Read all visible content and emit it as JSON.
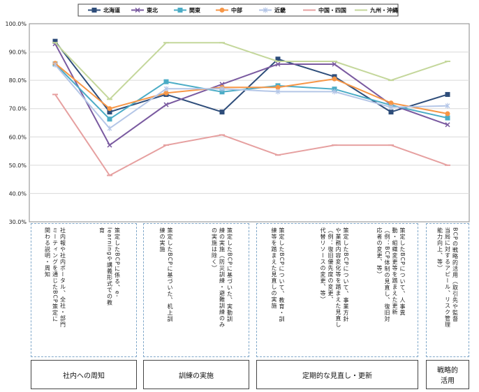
{
  "chart_data": {
    "type": "line",
    "ylim": [
      0.3,
      1.0
    ],
    "y_ticks": [
      "100.0%",
      "90.0%",
      "80.0%",
      "70.0%",
      "60.0%",
      "50.0%",
      "40.0%",
      "30.0%"
    ],
    "categories": [
      "社内報や社内ポータル、全社・部門ミーティングを通じたBCP策定に関わる説明・周知",
      "策定したBCPに係る、e-learningや講義形式での教育",
      "策定したBCPに基づいた、机上訓練の実施",
      "策定したBCPに基づいた、実動訓練の実施（防災訓練・避難訓練のみの実施は除く）",
      "策定したBCPについて、教育・訓練等を踏まえた見直しの実施",
      "策定したBCPについて、事業方針や業務内容変化等を踏まえた見直し（例：復旧優先度の変更、代替リソースの変更、等）",
      "策定したBCPについて、人事異動・組織変更等を踏まえた更新（例：BCP体制の見直し、復旧対応者の変更、等）",
      "BCPの戦略的活用（取引先や監督当局に対するアピール、リスク管理能力向上、等）"
    ],
    "category_lines": [
      [
        "社内報や社内ポータル、全社・部門",
        "ミーティングを通じたBCP策定に",
        "関わる説明・周知"
      ],
      [
        "策定したBCPに係る、e-",
        "learningや講義形式での教",
        "育"
      ],
      [
        "策定したBCPに基づいた、机上訓",
        "練の実施"
      ],
      [
        "策定したBCPに基づいた、実動訓",
        "練の実施（防災訓練・避難訓練のみ",
        "の実施は除く）"
      ],
      [
        "策定したBCPについて、教育・訓",
        "練等を踏まえた見直しの実施"
      ],
      [
        "策定したBCPについて、事業方針",
        "や業務内容変化等を踏まえた見直し",
        "（例：復旧優先度の変更、",
        "代替リソースの変更、等）"
      ],
      [
        "策定したBCPについて、人事異",
        "動・組織変更等を踏まえた更新",
        "（例：BCP体制の見直し、復旧対",
        "応者の変更、等）"
      ],
      [
        "BCPの戦略的活用（取引先や監督",
        "当局に対するアピール、リスク管理",
        "能力向上、等）"
      ]
    ],
    "groups": [
      {
        "label_lines": [
          "社内への周知"
        ],
        "span": [
          0,
          1
        ]
      },
      {
        "label_lines": [
          "訓練の実施"
        ],
        "span": [
          2,
          3
        ]
      },
      {
        "label_lines": [
          "定期的な見直し・更新"
        ],
        "span": [
          4,
          6
        ]
      },
      {
        "label_lines": [
          "戦略的",
          "活用"
        ],
        "span": [
          7,
          7
        ]
      }
    ],
    "series": [
      {
        "name": "北海道",
        "color": "#2e4d7a",
        "marker": "square",
        "values": [
          0.938,
          0.688,
          0.75,
          0.688,
          0.875,
          0.813,
          0.688,
          0.75
        ]
      },
      {
        "name": "東北",
        "color": "#7a5aa0",
        "marker": "x",
        "values": [
          0.929,
          0.571,
          0.714,
          0.786,
          0.857,
          0.857,
          0.714,
          0.643
        ]
      },
      {
        "name": "関東",
        "color": "#4bacc6",
        "marker": "square",
        "values": [
          0.858,
          0.663,
          0.795,
          0.759,
          0.781,
          0.769,
          0.712,
          0.667
        ]
      },
      {
        "name": "中部",
        "color": "#f79646",
        "marker": "circle",
        "values": [
          0.86,
          0.7,
          0.755,
          0.775,
          0.775,
          0.805,
          0.72,
          0.682
        ]
      },
      {
        "name": "近畿",
        "color": "#b4c6e7",
        "marker": "cross",
        "values": [
          0.855,
          0.63,
          0.77,
          0.77,
          0.76,
          0.76,
          0.705,
          0.71
        ]
      },
      {
        "name": "中国・四国",
        "color": "#e6a0a0",
        "marker": "dash",
        "values": [
          0.75,
          0.464,
          0.571,
          0.607,
          0.536,
          0.571,
          0.571,
          0.5
        ]
      },
      {
        "name": "九州・沖縄",
        "color": "#c4d79b",
        "marker": "dash",
        "values": [
          0.933,
          0.733,
          0.933,
          0.933,
          0.867,
          0.867,
          0.8,
          0.867
        ]
      }
    ]
  }
}
